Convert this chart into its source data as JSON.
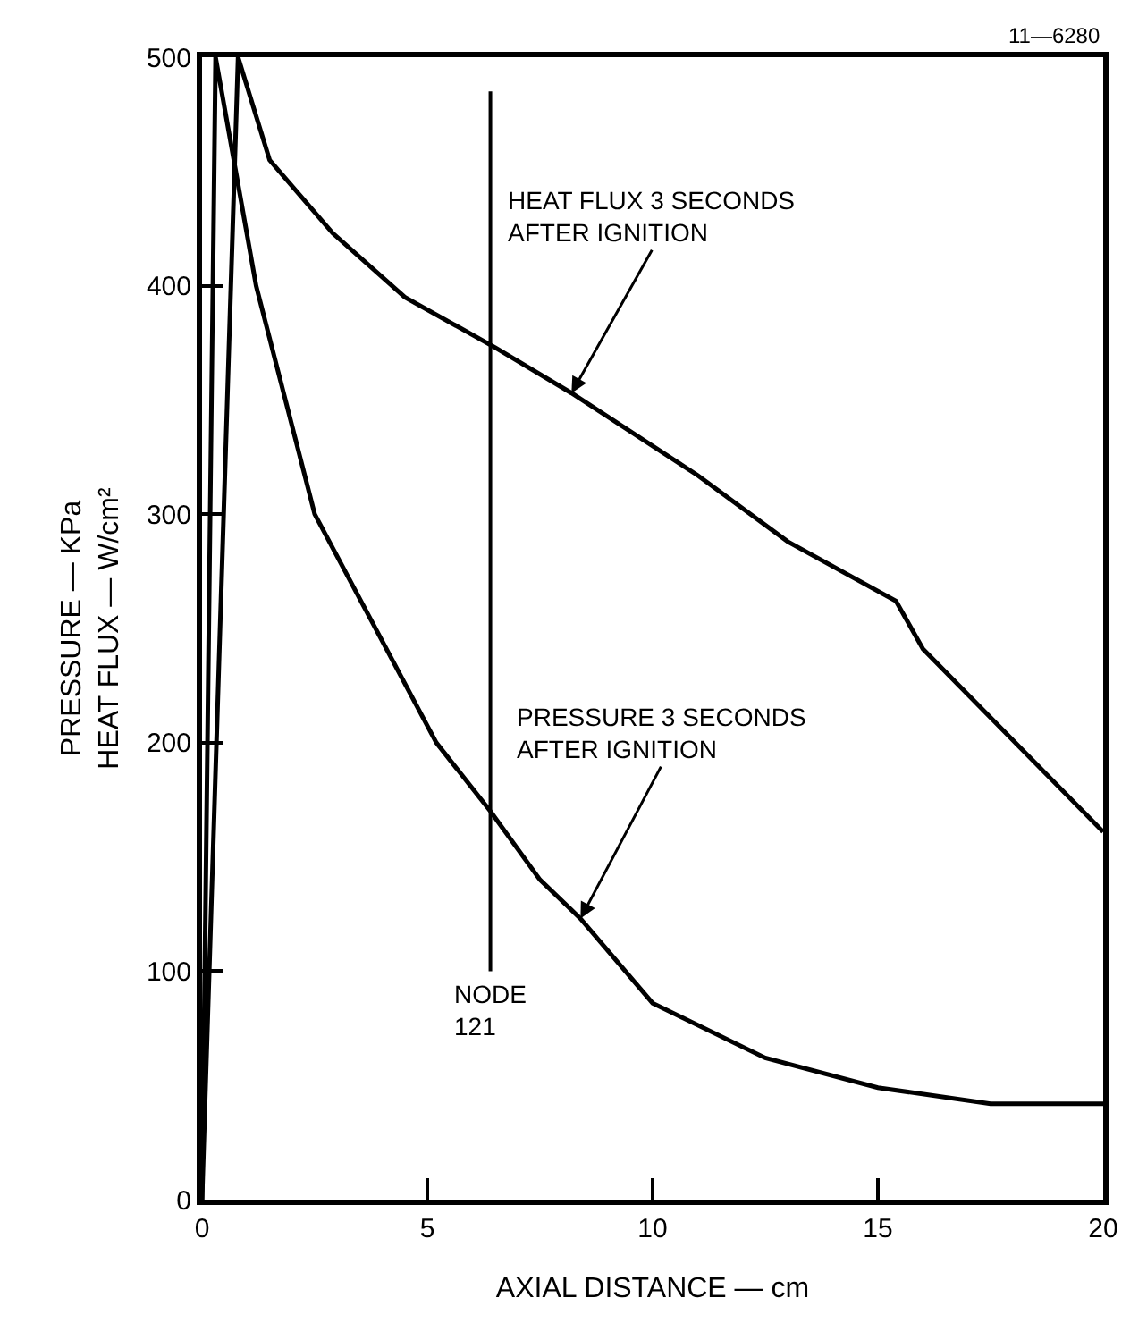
{
  "chart_data": {
    "type": "line",
    "xlabel": "AXIAL DISTANCE — cm",
    "ylabel": "PRESSURE — KPa\nHEAT FLUX — W/cm²",
    "xlim": [
      0,
      20
    ],
    "xticks": [
      0,
      5,
      10,
      15,
      20
    ],
    "ylim": [
      0,
      500
    ],
    "yticks": [
      0,
      100,
      200,
      300,
      400,
      500
    ],
    "grid": false,
    "marker": "none",
    "line_style": "solid",
    "series": [
      {
        "color": "#000000",
        "x": [
          0,
          0.8,
          1.5,
          2.9,
          4.5,
          6.5,
          8.2,
          11,
          13,
          15.4,
          16,
          20
        ],
        "values": [
          0,
          500,
          455,
          423,
          395,
          373,
          353,
          317,
          288,
          262,
          241,
          161
        ]
      },
      {
        "color": "#000000",
        "x": [
          0,
          0.3,
          1.2,
          2.5,
          5.2,
          6.4,
          7.5,
          8.4,
          10,
          12.5,
          15,
          17.5,
          20
        ],
        "values": [
          0,
          500,
          400,
          300,
          200,
          170,
          140,
          123,
          86,
          62,
          49,
          42,
          42
        ]
      }
    ],
    "ref_lines": [
      {
        "axis": "x",
        "value": 6.4,
        "label": "NODE\n121",
        "color": "#000000",
        "line_style": "solid"
      }
    ],
    "annotations": [
      {
        "text": "HEAT FLUX 3 SECONDS\nAFTER IGNITION",
        "x": 8.2,
        "y": 353
      },
      {
        "text": "PRESSURE 3 SECONDS\nAFTER IGNITION",
        "x": 8.4,
        "y": 123
      },
      "11—6280"
    ]
  }
}
